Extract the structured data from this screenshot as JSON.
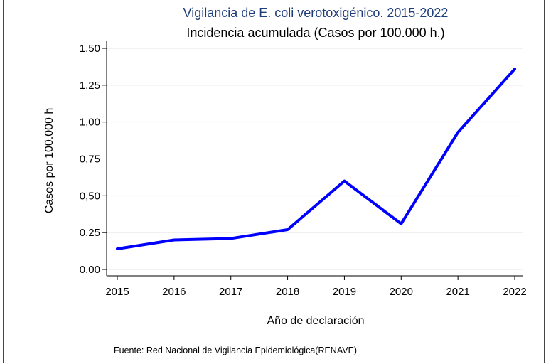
{
  "chart_data": {
    "type": "line",
    "title": "Vigilancia de E. coli verotoxigénico. 2015-2022",
    "subtitle": "Incidencia acumulada (Casos por 100.000 h.)",
    "xlabel": "Año de declaración",
    "ylabel": "Casos por 100.000 h",
    "source": "Fuente: Red Nacional de Vigilancia Epidemiológica(RENAVE)",
    "x": [
      2015,
      2016,
      2017,
      2018,
      2019,
      2020,
      2021,
      2022
    ],
    "x_tick_labels": [
      "2015",
      "2016",
      "2017",
      "2018",
      "2019",
      "2020",
      "2021",
      "2022"
    ],
    "y_ticks": [
      0,
      0.25,
      0.5,
      0.75,
      1.0,
      1.25,
      1.5
    ],
    "y_tick_labels": [
      "0,00",
      "0,25",
      "0,50",
      "0,75",
      "1,00",
      "1,25",
      "1,50"
    ],
    "ylim": [
      0,
      1.5
    ],
    "grid": true,
    "series": [
      {
        "values": [
          0.14,
          0.2,
          0.21,
          0.27,
          0.6,
          0.31,
          0.93,
          1.36
        ],
        "color": "#0000ff"
      }
    ]
  }
}
